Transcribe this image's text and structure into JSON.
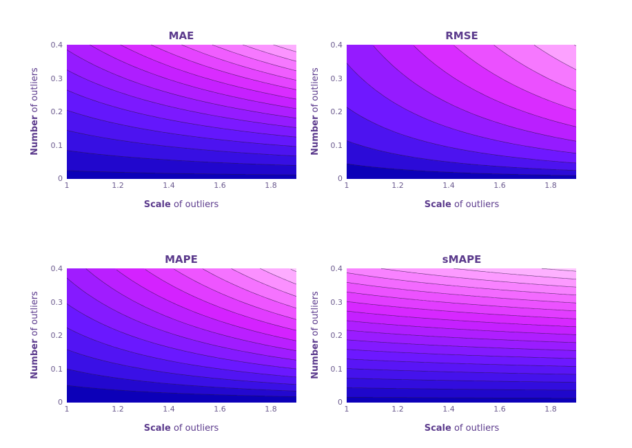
{
  "chart_data": [
    {
      "type": "contour",
      "title": "MAE",
      "xlabel_bold": "Scale",
      "xlabel_rest": " of outliers",
      "ylabel_bold": "Number",
      "ylabel_rest": " of outliers",
      "xlim": [
        1,
        1.9
      ],
      "ylim": [
        0,
        0.4
      ],
      "xticks": [
        1,
        1.2,
        1.4,
        1.6,
        1.8
      ],
      "xtick_labels": [
        "1",
        "1.2",
        "1.4",
        "1.6",
        "1.8"
      ],
      "yticks": [
        0,
        0.1,
        0.2,
        0.3,
        0.4
      ],
      "ytick_labels": [
        "0",
        "0.1",
        "0.2",
        "0.3",
        "0.4"
      ],
      "z_function": "y*(x-0.2)",
      "levels_start": 0.02,
      "levels_step": 0.048,
      "z_range": [
        0,
        0.68
      ]
    },
    {
      "type": "contour",
      "title": "RMSE",
      "xlabel_bold": "Scale",
      "xlabel_rest": " of outliers",
      "ylabel_bold": "Number",
      "ylabel_rest": " of outliers",
      "xlim": [
        1,
        1.9
      ],
      "ylim": [
        0,
        0.4
      ],
      "xticks": [
        1,
        1.2,
        1.4,
        1.6,
        1.8
      ],
      "xtick_labels": [
        "1",
        "1.2",
        "1.4",
        "1.6",
        "1.8"
      ],
      "yticks": [
        0,
        0.1,
        0.2,
        0.3,
        0.4
      ],
      "ytick_labels": [
        "0",
        "0.1",
        "0.2",
        "0.3",
        "0.4"
      ],
      "z_function": "sqrt(y)*(x-0.2)",
      "levels_start": 0.17,
      "levels_step": 0.1,
      "z_range": [
        0,
        1.075
      ]
    },
    {
      "type": "contour",
      "title": "MAPE",
      "xlabel_bold": "Scale",
      "xlabel_rest": " of outliers",
      "ylabel_bold": "Number",
      "ylabel_rest": " of outliers",
      "xlim": [
        1,
        1.9
      ],
      "ylim": [
        0,
        0.4
      ],
      "xticks": [
        1,
        1.2,
        1.4,
        1.6,
        1.8
      ],
      "xtick_labels": [
        "1",
        "1.2",
        "1.4",
        "1.6",
        "1.8"
      ],
      "yticks": [
        0,
        0.1,
        0.2,
        0.3,
        0.4
      ],
      "ytick_labels": [
        "0",
        "0.1",
        "0.2",
        "0.3",
        "0.4"
      ],
      "z_function": "y^0.7*(x-0.2)",
      "levels_start": 0.1,
      "levels_step": 0.06,
      "z_range": [
        0,
        0.895
      ]
    },
    {
      "type": "contour",
      "title": "sMAPE",
      "xlabel_bold": "Scale",
      "xlabel_rest": " of outliers",
      "ylabel_bold": "Number",
      "ylabel_rest": " of outliers",
      "xlim": [
        1,
        1.9
      ],
      "ylim": [
        0,
        0.4
      ],
      "xticks": [
        1,
        1.2,
        1.4,
        1.6,
        1.8
      ],
      "xtick_labels": [
        "1",
        "1.2",
        "1.4",
        "1.6",
        "1.8"
      ],
      "yticks": [
        0,
        0.1,
        0.2,
        0.3,
        0.4
      ],
      "ytick_labels": [
        "0",
        "0.1",
        "0.2",
        "0.3",
        "0.4"
      ],
      "z_function": "y*(x-0.2)^0.25",
      "levels_start": 0.015,
      "levels_step": 0.027,
      "z_range": [
        0,
        0.46
      ]
    }
  ],
  "colors": {
    "title": "#5b3a8c",
    "tick": "#6b5a8e",
    "contour_line": "#2a1a40",
    "colorscale": [
      "#0c00b8",
      "#3a10e6",
      "#6a18ff",
      "#a01cff",
      "#d422ff",
      "#ee55ff",
      "#fb90ff",
      "#ffc8ff"
    ]
  }
}
